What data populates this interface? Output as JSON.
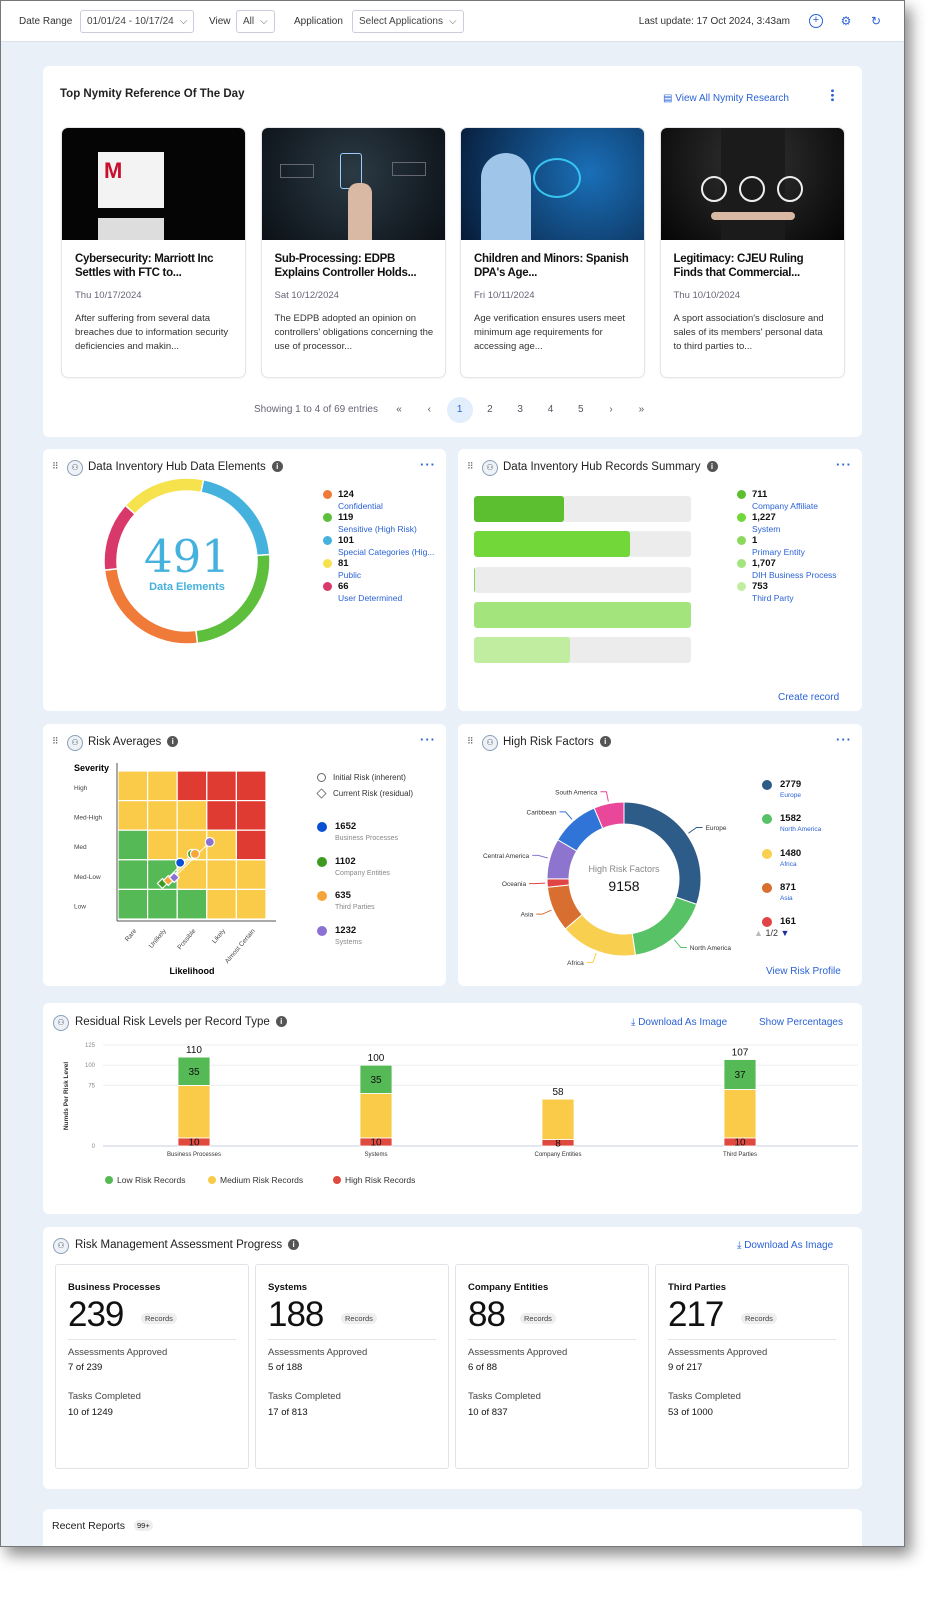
{
  "header": {
    "date_range_label": "Date Range",
    "date_range_value": "01/01/24 - 10/17/24",
    "view_label": "View",
    "view_value": "All",
    "application_label": "Application",
    "application_placeholder": "Select Applications",
    "last_update": "Last update: 17 Oct 2024, 3:43am",
    "icons": [
      "plus-circle-icon",
      "gear-icon",
      "refresh-icon"
    ]
  },
  "nymity": {
    "title": "Top Nymity Reference Of The Day",
    "view_all": "View All Nymity Research",
    "cards": [
      {
        "title": "Cybersecurity: Marriott Inc Settles with FTC to...",
        "date": "Thu 10/17/2024",
        "desc": "After suffering from several data breaches due to information security deficiencies and makin...",
        "image": "marriott-starwood-sign"
      },
      {
        "title": "Sub-Processing: EDPB Explains Controller Holds...",
        "date": "Sat 10/12/2024",
        "desc": "The EDPB adopted an opinion on controllers' obligations concerning the use of processor...",
        "image": "hand-touching-processor-diagram"
      },
      {
        "title": "Children and Minors: Spanish DPA's Age...",
        "date": "Fri 10/11/2024",
        "desc": "Age verification ensures users meet minimum age requirements for accessing age...",
        "image": "boy-age-verification"
      },
      {
        "title": "Legitimacy: CJEU Ruling Finds that Commercial...",
        "date": "Thu 10/10/2024",
        "desc": "A sport association's disclosure and sales of its members' personal data to third parties to...",
        "image": "gavel-hands-business"
      }
    ],
    "pagination": {
      "summary": "Showing 1 to 4 of 69 entries",
      "first": "«",
      "prev": "‹",
      "pages": [
        "1",
        "2",
        "3",
        "4",
        "5"
      ],
      "current": "1",
      "next": "›",
      "last": "»"
    }
  },
  "data_elements": {
    "title": "Data Inventory Hub Data Elements",
    "total": "491",
    "total_label": "Data Elements",
    "items": [
      {
        "value": "124",
        "label": "Confidential",
        "color": "#f07a38"
      },
      {
        "value": "119",
        "label": "Sensitive (High Risk)",
        "color": "#5dbf3c"
      },
      {
        "value": "101",
        "label": "Special Categories (Hig...",
        "color": "#45b2dd"
      },
      {
        "value": "81",
        "label": "Public",
        "color": "#f6e24c"
      },
      {
        "value": "66",
        "label": "User Determined",
        "color": "#d8386a"
      }
    ]
  },
  "records_summary": {
    "title": "Data Inventory Hub Records Summary",
    "create_record": "Create record",
    "items": [
      {
        "value": "711",
        "label": "Company Affiliate",
        "count": 711,
        "color": "#5bbf30"
      },
      {
        "value": "1,227",
        "label": "System",
        "count": 1227,
        "color": "#72d83a"
      },
      {
        "value": "1",
        "label": "Primary Entity",
        "count": 1,
        "color": "#8bd95c"
      },
      {
        "value": "1,707",
        "label": "DIH Business Process",
        "count": 1707,
        "color": "#a3e57c"
      },
      {
        "value": "753",
        "label": "Third Party",
        "count": 753,
        "color": "#c0eda0"
      }
    ]
  },
  "risk_averages": {
    "title": "Risk Averages",
    "y_axis_title": "Severity",
    "x_axis_title": "Likelihood",
    "severity_levels": [
      "High",
      "Med-High",
      "Med",
      "Med-Low",
      "Low"
    ],
    "likelihood_levels": [
      "Rare",
      "Unlikely",
      "Possible",
      "Likely",
      "Almost Certain"
    ],
    "matrix_colors": [
      [
        "#f9cb48",
        "#f9cb48",
        "#e03b32",
        "#e03b32",
        "#e03b32"
      ],
      [
        "#f9cb48",
        "#f9cb48",
        "#f9cb48",
        "#e03b32",
        "#e03b32"
      ],
      [
        "#55b955",
        "#f9cb48",
        "#f9cb48",
        "#f9cb48",
        "#e03b32"
      ],
      [
        "#55b955",
        "#55b955",
        "#f9cb48",
        "#f9cb48",
        "#f9cb48"
      ],
      [
        "#55b955",
        "#55b955",
        "#55b955",
        "#f9cb48",
        "#f9cb48"
      ]
    ],
    "legend_markers": [
      {
        "label": "Initial Risk (inherent)",
        "shape": "circle"
      },
      {
        "label": "Current Risk (residual)",
        "shape": "diamond"
      }
    ],
    "series": [
      {
        "value": "1652",
        "label": "Business Processes",
        "color": "#0a4fd4",
        "initial": [
          2.6,
          2.4
        ]
      },
      {
        "value": "1102",
        "label": "Company Entities",
        "color": "#3c9a1e",
        "initial": [
          3.0,
          2.7
        ],
        "residual": [
          2.0,
          1.7
        ]
      },
      {
        "value": "635",
        "label": "Third Parties",
        "color": "#f6a53a",
        "initial": [
          3.1,
          2.7
        ],
        "residual": [
          2.2,
          1.8
        ]
      },
      {
        "value": "1232",
        "label": "Systems",
        "color": "#8b72d2",
        "initial": [
          3.6,
          3.1
        ],
        "residual": [
          2.4,
          1.9
        ]
      }
    ]
  },
  "high_risk": {
    "title": "High Risk Factors",
    "center_label": "High Risk Factors",
    "total": "9158",
    "view_profile": "View Risk Profile",
    "legend_page": "1/2",
    "segments": [
      {
        "label": "Europe",
        "value": 2779,
        "color": "#2e5c88"
      },
      {
        "label": "North America",
        "value": 1582,
        "color": "#57c266"
      },
      {
        "label": "Africa",
        "value": 1480,
        "color": "#f9cf4f"
      },
      {
        "label": "Asia",
        "value": 871,
        "color": "#d86f30"
      },
      {
        "label": "Oceania",
        "value": 161,
        "color": "#e04444"
      },
      {
        "label": "Central America",
        "value": 775,
        "color": "#8d74cf"
      },
      {
        "label": "Caribbean",
        "value": 930,
        "color": "#2f74d6"
      },
      {
        "label": "South America",
        "value": 580,
        "color": "#e8479a"
      }
    ],
    "legend": [
      {
        "value": "2779",
        "label": "Europe",
        "color": "#2e5c88"
      },
      {
        "value": "1582",
        "label": "North America",
        "color": "#57c266"
      },
      {
        "value": "1480",
        "label": "Africa",
        "color": "#f9cf4f"
      },
      {
        "value": "871",
        "label": "Asia",
        "color": "#d86f30"
      },
      {
        "value": "161",
        "label": "",
        "color": "#e04444"
      }
    ]
  },
  "residual": {
    "title": "Residual Risk Levels per Record Type",
    "download": "Download As Image",
    "show_percentages": "Show Percentages"
  },
  "chart_data": {
    "type": "bar",
    "stacked": true,
    "title": "Residual Risk Levels per Record Type",
    "ylabel": "Numds Per Risk Level",
    "xlabel": "",
    "ylim": [
      0,
      125
    ],
    "yticks": [
      0,
      75,
      100,
      125
    ],
    "categories": [
      "Business Processes",
      "Systems",
      "Company Entities",
      "Third Parties"
    ],
    "totals": [
      110,
      100,
      58,
      107
    ],
    "series": [
      {
        "name": "High Risk Records",
        "color": "#e0493e",
        "values": [
          10,
          10,
          8,
          10
        ]
      },
      {
        "name": "Medium Risk Records",
        "color": "#f9cb48",
        "values": [
          65,
          55,
          50,
          60
        ]
      },
      {
        "name": "Low Risk Records",
        "color": "#55b955",
        "values": [
          35,
          35,
          0,
          37
        ]
      }
    ],
    "legend_order": [
      "Low Risk Records",
      "Medium Risk Records",
      "High Risk Records"
    ],
    "legend_position": "bottom-left",
    "grid": true
  },
  "assessment": {
    "title": "Risk Management Assessment Progress",
    "download": "Download As Image",
    "records_badge": "Records",
    "approved_label": "Assessments Approved",
    "tasks_label": "Tasks Completed",
    "cards": [
      {
        "title": "Business Processes",
        "count": "239",
        "approved": "7 of 239",
        "tasks": "10 of 1249"
      },
      {
        "title": "Systems",
        "count": "188",
        "approved": "5 of 188",
        "tasks": "17 of 813"
      },
      {
        "title": "Company Entities",
        "count": "88",
        "approved": "6 of 88",
        "tasks": "10 of 837"
      },
      {
        "title": "Third Parties",
        "count": "217",
        "approved": "9 of 217",
        "tasks": "53 of 1000"
      }
    ]
  },
  "recent_reports": {
    "title": "Recent Reports",
    "badge": "99+"
  }
}
